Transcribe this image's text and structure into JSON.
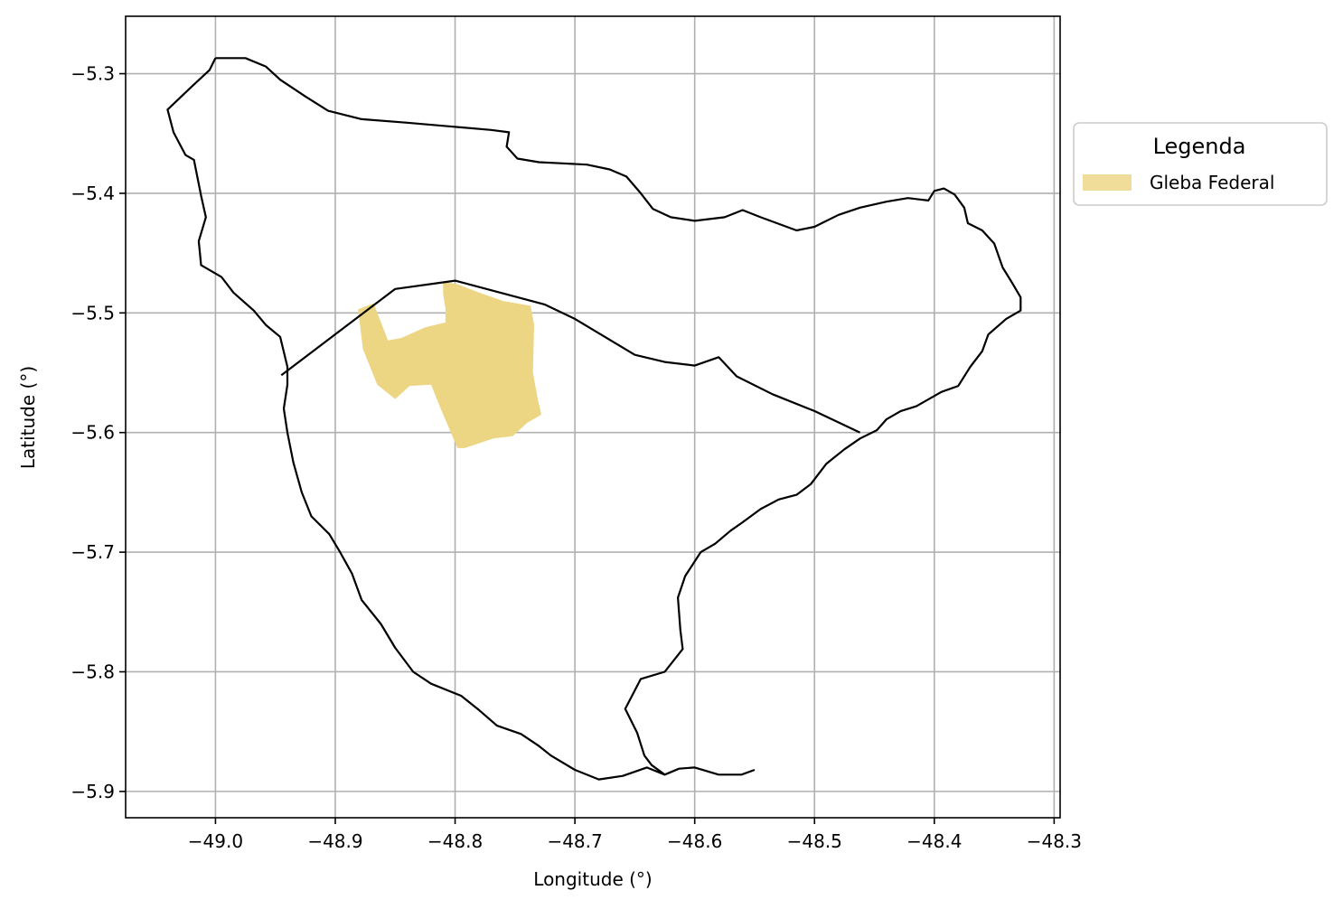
{
  "chart_data": {
    "type": "map",
    "title": "",
    "xlabel": "Longitude (°)",
    "ylabel": "Latitude (°)",
    "xlim": [
      -49.075,
      -48.295
    ],
    "ylim": [
      -5.922,
      -5.252
    ],
    "xticks": [
      {
        "value": -49.0,
        "label": "−49.0"
      },
      {
        "value": -48.9,
        "label": "−48.9"
      },
      {
        "value": -48.8,
        "label": "−48.8"
      },
      {
        "value": -48.7,
        "label": "−48.7"
      },
      {
        "value": -48.6,
        "label": "−48.6"
      },
      {
        "value": -48.5,
        "label": "−48.5"
      },
      {
        "value": -48.4,
        "label": "−48.4"
      },
      {
        "value": -48.3,
        "label": "−48.3"
      }
    ],
    "yticks": [
      {
        "value": -5.3,
        "label": "−5.3"
      },
      {
        "value": -5.4,
        "label": "−5.4"
      },
      {
        "value": -5.5,
        "label": "−5.5"
      },
      {
        "value": -5.6,
        "label": "−5.6"
      },
      {
        "value": -5.7,
        "label": "−5.7"
      },
      {
        "value": -5.8,
        "label": "−5.8"
      },
      {
        "value": -5.9,
        "label": "−5.9"
      }
    ],
    "grid": true,
    "legend": {
      "title": "Legenda",
      "placement": "outside-right-top",
      "entries": [
        {
          "label": "Gleba Federal",
          "color": "#f0dd9a"
        }
      ]
    },
    "layers": [
      {
        "kind": "outline",
        "stroke": "#000000",
        "points": [
          [
            -49.0,
            -5.287
          ],
          [
            -48.975,
            -5.287
          ],
          [
            -48.958,
            -5.294
          ],
          [
            -48.946,
            -5.305
          ],
          [
            -48.925,
            -5.319
          ],
          [
            -48.906,
            -5.331
          ],
          [
            -48.878,
            -5.338
          ],
          [
            -48.84,
            -5.341
          ],
          [
            -48.805,
            -5.344
          ],
          [
            -48.77,
            -5.347
          ],
          [
            -48.755,
            -5.349
          ],
          [
            -48.757,
            -5.361
          ],
          [
            -48.748,
            -5.371
          ],
          [
            -48.73,
            -5.374
          ],
          [
            -48.71,
            -5.375
          ],
          [
            -48.69,
            -5.376
          ],
          [
            -48.671,
            -5.38
          ],
          [
            -48.657,
            -5.386
          ],
          [
            -48.645,
            -5.4
          ],
          [
            -48.635,
            -5.413
          ],
          [
            -48.62,
            -5.42
          ],
          [
            -48.6,
            -5.423
          ],
          [
            -48.575,
            -5.42
          ],
          [
            -48.56,
            -5.414
          ],
          [
            -48.545,
            -5.42
          ],
          [
            -48.515,
            -5.431
          ],
          [
            -48.5,
            -5.428
          ],
          [
            -48.48,
            -5.418
          ],
          [
            -48.462,
            -5.412
          ],
          [
            -48.44,
            -5.407
          ],
          [
            -48.422,
            -5.404
          ],
          [
            -48.405,
            -5.406
          ],
          [
            -48.4,
            -5.398
          ],
          [
            -48.392,
            -5.396
          ],
          [
            -48.383,
            -5.401
          ],
          [
            -48.375,
            -5.412
          ],
          [
            -48.372,
            -5.425
          ],
          [
            -48.36,
            -5.431
          ],
          [
            -48.35,
            -5.442
          ],
          [
            -48.343,
            -5.462
          ],
          [
            -48.335,
            -5.475
          ],
          [
            -48.328,
            -5.487
          ],
          [
            -48.328,
            -5.498
          ],
          [
            -48.34,
            -5.505
          ],
          [
            -48.355,
            -5.518
          ],
          [
            -48.36,
            -5.532
          ],
          [
            -48.37,
            -5.545
          ],
          [
            -48.38,
            -5.561
          ],
          [
            -48.394,
            -5.566
          ],
          [
            -48.415,
            -5.578
          ],
          [
            -48.428,
            -5.582
          ],
          [
            -48.44,
            -5.589
          ],
          [
            -48.448,
            -5.598
          ],
          [
            -48.462,
            -5.605
          ],
          [
            -48.475,
            -5.614
          ],
          [
            -48.49,
            -5.626
          ],
          [
            -48.503,
            -5.643
          ],
          [
            -48.515,
            -5.652
          ],
          [
            -48.53,
            -5.656
          ],
          [
            -48.545,
            -5.664
          ],
          [
            -48.56,
            -5.675
          ],
          [
            -48.57,
            -5.682
          ],
          [
            -48.583,
            -5.693
          ],
          [
            -48.595,
            -5.7
          ],
          [
            -48.608,
            -5.72
          ],
          [
            -48.614,
            -5.738
          ],
          [
            -48.612,
            -5.765
          ],
          [
            -48.61,
            -5.781
          ],
          [
            -48.625,
            -5.8
          ],
          [
            -48.645,
            -5.806
          ],
          [
            -48.658,
            -5.831
          ],
          [
            -48.648,
            -5.851
          ],
          [
            -48.642,
            -5.87
          ],
          [
            -48.636,
            -5.878
          ],
          [
            -48.625,
            -5.886
          ],
          [
            -48.613,
            -5.881
          ],
          [
            -48.6,
            -5.88
          ],
          [
            -48.58,
            -5.886
          ],
          [
            -48.561,
            -5.886
          ],
          [
            -48.55,
            -5.882
          ]
        ]
      },
      {
        "kind": "outline",
        "stroke": "#000000",
        "points": [
          [
            -49.0,
            -5.287
          ],
          [
            -49.005,
            -5.297
          ],
          [
            -49.02,
            -5.311
          ],
          [
            -49.04,
            -5.33
          ],
          [
            -49.035,
            -5.349
          ],
          [
            -49.025,
            -5.368
          ],
          [
            -49.018,
            -5.372
          ],
          [
            -49.012,
            -5.402
          ],
          [
            -49.008,
            -5.42
          ],
          [
            -49.014,
            -5.44
          ],
          [
            -49.012,
            -5.46
          ],
          [
            -48.995,
            -5.47
          ],
          [
            -48.985,
            -5.483
          ],
          [
            -48.968,
            -5.498
          ],
          [
            -48.958,
            -5.51
          ],
          [
            -48.946,
            -5.52
          ],
          [
            -48.94,
            -5.545
          ],
          [
            -48.94,
            -5.56
          ],
          [
            -48.943,
            -5.58
          ],
          [
            -48.94,
            -5.6
          ],
          [
            -48.935,
            -5.625
          ],
          [
            -48.928,
            -5.65
          ],
          [
            -48.92,
            -5.67
          ],
          [
            -48.905,
            -5.685
          ],
          [
            -48.896,
            -5.7
          ],
          [
            -48.886,
            -5.718
          ],
          [
            -48.878,
            -5.74
          ],
          [
            -48.862,
            -5.76
          ],
          [
            -48.85,
            -5.78
          ],
          [
            -48.835,
            -5.8
          ],
          [
            -48.82,
            -5.81
          ],
          [
            -48.795,
            -5.82
          ],
          [
            -48.78,
            -5.832
          ],
          [
            -48.765,
            -5.845
          ],
          [
            -48.745,
            -5.852
          ],
          [
            -48.73,
            -5.862
          ],
          [
            -48.72,
            -5.87
          ],
          [
            -48.7,
            -5.882
          ],
          [
            -48.68,
            -5.89
          ],
          [
            -48.66,
            -5.887
          ],
          [
            -48.64,
            -5.88
          ],
          [
            -48.625,
            -5.886
          ]
        ]
      },
      {
        "kind": "outline",
        "stroke": "#000000",
        "points": [
          [
            -48.945,
            -5.552
          ],
          [
            -48.85,
            -5.48
          ],
          [
            -48.8,
            -5.473
          ],
          [
            -48.725,
            -5.493
          ],
          [
            -48.7,
            -5.505
          ],
          [
            -48.65,
            -5.535
          ],
          [
            -48.625,
            -5.541
          ],
          [
            -48.6,
            -5.544
          ],
          [
            -48.58,
            -5.537
          ],
          [
            -48.565,
            -5.553
          ],
          [
            -48.535,
            -5.568
          ],
          [
            -48.5,
            -5.582
          ],
          [
            -48.462,
            -5.6
          ]
        ]
      },
      {
        "kind": "fill",
        "fill": "#ecd683",
        "points": [
          [
            -48.81,
            -5.474
          ],
          [
            -48.798,
            -5.476
          ],
          [
            -48.78,
            -5.483
          ],
          [
            -48.76,
            -5.49
          ],
          [
            -48.737,
            -5.494
          ],
          [
            -48.734,
            -5.51
          ],
          [
            -48.735,
            -5.55
          ],
          [
            -48.731,
            -5.572
          ],
          [
            -48.728,
            -5.585
          ],
          [
            -48.74,
            -5.592
          ],
          [
            -48.752,
            -5.603
          ],
          [
            -48.768,
            -5.605
          ],
          [
            -48.792,
            -5.613
          ],
          [
            -48.798,
            -5.613
          ],
          [
            -48.812,
            -5.58
          ],
          [
            -48.82,
            -5.56
          ],
          [
            -48.838,
            -5.561
          ],
          [
            -48.85,
            -5.572
          ],
          [
            -48.865,
            -5.56
          ],
          [
            -48.877,
            -5.53
          ],
          [
            -48.881,
            -5.497
          ],
          [
            -48.868,
            -5.492
          ],
          [
            -48.856,
            -5.523
          ],
          [
            -48.845,
            -5.521
          ],
          [
            -48.825,
            -5.512
          ],
          [
            -48.808,
            -5.508
          ],
          [
            -48.808,
            -5.496
          ],
          [
            -48.81,
            -5.484
          ]
        ]
      }
    ]
  }
}
